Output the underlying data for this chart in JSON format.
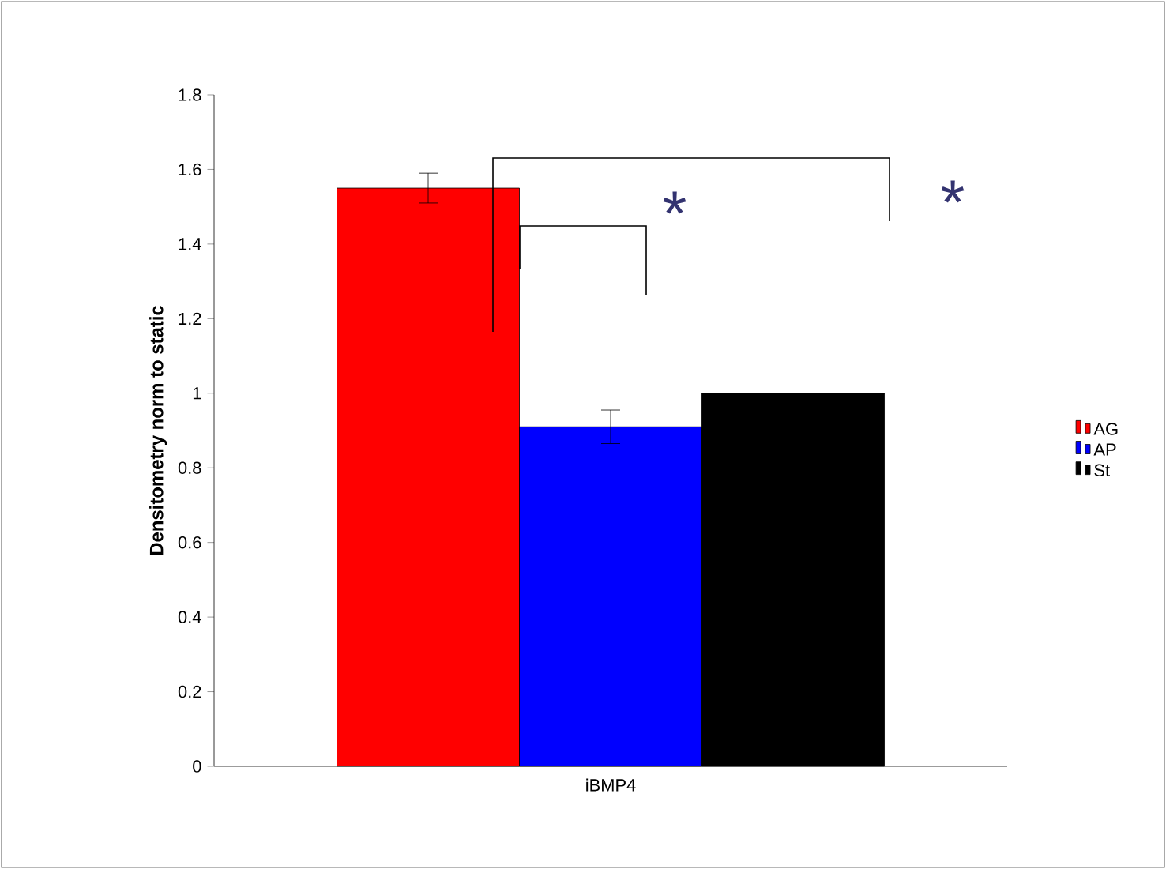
{
  "chart_data": {
    "type": "bar",
    "ylabel": "Densitometry norm to static",
    "categories": [
      "iBMP4"
    ],
    "series": [
      {
        "name": "AG",
        "color": "#ff0000",
        "values": [
          1.55
        ],
        "errors": [
          0.04
        ]
      },
      {
        "name": "AP",
        "color": "#0000ff",
        "values": [
          0.91
        ],
        "errors": [
          0.045
        ]
      },
      {
        "name": "St",
        "color": "#000000",
        "values": [
          1.0
        ],
        "errors": [
          null
        ]
      }
    ],
    "ylim": [
      0,
      1.8
    ],
    "yticks": [
      0,
      0.2,
      0.4,
      0.6,
      0.8,
      1,
      1.2,
      1.4,
      1.6,
      1.8
    ],
    "legend": "right",
    "annotations": [
      "*",
      "*"
    ]
  }
}
